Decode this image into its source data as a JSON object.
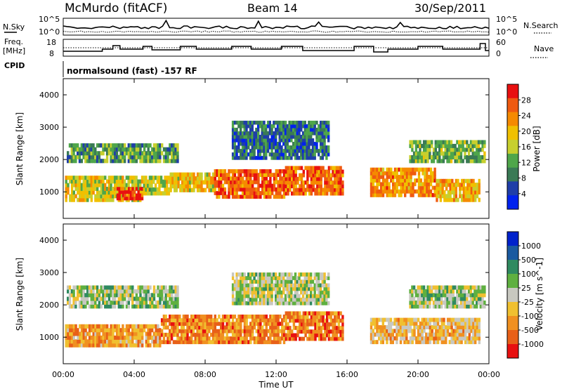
{
  "header": {
    "station": "McMurdo (fitACF)",
    "beam": "Beam 14",
    "date": "30/Sep/2011"
  },
  "noise_panel": {
    "left_label": "N.Sky",
    "right_label": "N.Search",
    "left_ticks": [
      "10^5",
      "10^0"
    ],
    "right_ticks": [
      "10^5",
      "10^0"
    ]
  },
  "freq_panel": {
    "left_label_line1": "Freq.",
    "left_label_line2": "[MHz]",
    "right_label": "Nave",
    "left_ticks": [
      "18",
      "8"
    ],
    "right_ticks": [
      "60",
      "0"
    ]
  },
  "cpid": {
    "label": "CPID",
    "mode": "normalsound (fast) -157 RF"
  },
  "colors": {
    "power_scale": [
      "#0022ee",
      "#1f3ea8",
      "#3a7a55",
      "#4fa64a",
      "#c7cf2e",
      "#f0c000",
      "#f58a00",
      "#ef5a10",
      "#e81010"
    ],
    "velocity_scale": [
      "#0022cc",
      "#1a5aa0",
      "#2f8a60",
      "#5fb040",
      "#c8c8c0",
      "#f0c030",
      "#f09020",
      "#e86018",
      "#e81010"
    ]
  },
  "chart_data": [
    {
      "type": "heatmap",
      "panel": "power",
      "ylabel": "Slant Range [km]",
      "y_ticks": [
        "1000",
        "2000",
        "3000",
        "4000"
      ],
      "ylim": [
        180,
        4500
      ],
      "xlim": [
        "00:00",
        "24:00"
      ],
      "colorbar_label": "Power [dB]",
      "colorbar_ticks": [
        "4",
        "8",
        "12",
        "16",
        "20",
        "24",
        "28"
      ],
      "bands": [
        {
          "t0": 0.1,
          "t1": 4.5,
          "r0": 700,
          "r1": 1500,
          "level": 0.55
        },
        {
          "t0": 3.0,
          "t1": 4.5,
          "r0": 750,
          "r1": 1150,
          "level": 0.92
        },
        {
          "t0": 4.5,
          "t1": 6.0,
          "r0": 900,
          "r1": 1500,
          "level": 0.5
        },
        {
          "t0": 6.0,
          "t1": 8.5,
          "r0": 1000,
          "r1": 1600,
          "level": 0.6
        },
        {
          "t0": 8.5,
          "t1": 12.5,
          "r0": 800,
          "r1": 1700,
          "level": 0.8
        },
        {
          "t0": 12.5,
          "t1": 15.8,
          "r0": 900,
          "r1": 1800,
          "level": 0.8
        },
        {
          "t0": 17.3,
          "t1": 21.0,
          "r0": 850,
          "r1": 1750,
          "level": 0.72
        },
        {
          "t0": 21.0,
          "t1": 23.5,
          "r0": 700,
          "r1": 1400,
          "level": 0.65
        },
        {
          "t0": 0.2,
          "t1": 6.5,
          "r0": 1900,
          "r1": 2500,
          "level": 0.35
        },
        {
          "t0": 9.5,
          "t1": 15.0,
          "r0": 2000,
          "r1": 3200,
          "level": 0.25
        },
        {
          "t0": 19.5,
          "t1": 23.8,
          "r0": 1900,
          "r1": 2600,
          "level": 0.4
        }
      ]
    },
    {
      "type": "heatmap",
      "panel": "velocity",
      "ylabel": "Slant Range [km]",
      "y_ticks": [
        "1000",
        "2000",
        "3000",
        "4000"
      ],
      "ylim": [
        180,
        4500
      ],
      "xlim": [
        "00:00",
        "24:00"
      ],
      "xlabel": "Time UT",
      "x_ticks": [
        "00:00",
        "04:00",
        "08:00",
        "12:00",
        "16:00",
        "20:00",
        "00:00"
      ],
      "colorbar_label": "Velocity [m s^-1]",
      "colorbar_ticks": [
        "1000",
        "500",
        "100",
        "25",
        "-25",
        "-100",
        "-500",
        "-1000"
      ],
      "bands": [
        {
          "t0": 0.1,
          "t1": 5.5,
          "r0": 700,
          "r1": 1400,
          "level": 0.7
        },
        {
          "t0": 5.5,
          "t1": 12.5,
          "r0": 800,
          "r1": 1700,
          "level": 0.75
        },
        {
          "t0": 12.5,
          "t1": 15.8,
          "r0": 900,
          "r1": 1800,
          "level": 0.78
        },
        {
          "t0": 17.3,
          "t1": 23.5,
          "r0": 800,
          "r1": 1600,
          "level": 0.62
        },
        {
          "t0": 0.2,
          "t1": 6.5,
          "r0": 1900,
          "r1": 2600,
          "level": 0.45
        },
        {
          "t0": 9.5,
          "t1": 15.0,
          "r0": 2000,
          "r1": 3000,
          "level": 0.48
        },
        {
          "t0": 19.5,
          "t1": 23.8,
          "r0": 1900,
          "r1": 2600,
          "level": 0.45
        }
      ]
    }
  ]
}
